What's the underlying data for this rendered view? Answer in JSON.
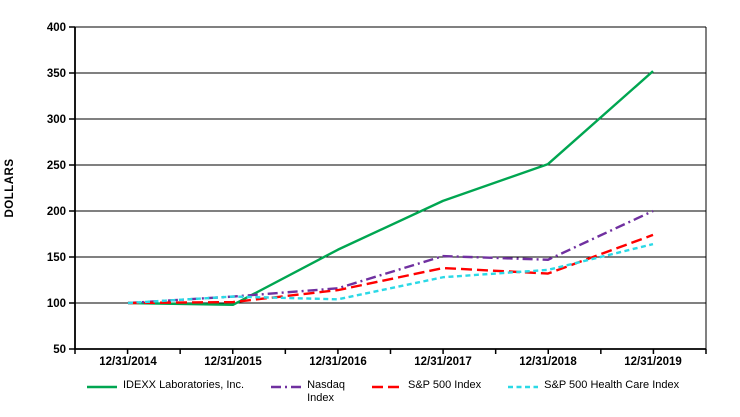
{
  "chart_data": {
    "type": "line",
    "title": "",
    "xlabel": "",
    "ylabel": "DOLLARS",
    "ylim": [
      50,
      400
    ],
    "y_ticks": [
      50,
      100,
      150,
      200,
      250,
      300,
      350,
      400
    ],
    "x_labels": [
      "12/31/2014",
      "12/31/2015",
      "12/31/2016",
      "12/31/2017",
      "12/31/2018",
      "12/31/2019"
    ],
    "grid": "horizontal",
    "legend_position": "bottom",
    "series": [
      {
        "name": "IDEXX Laboratories, Inc.",
        "legend_label": "IDEXX Laboratories, Inc.",
        "color": "#00A651",
        "dash": "solid",
        "values": [
          100,
          98,
          158,
          211,
          251,
          352
        ]
      },
      {
        "name": "Nasdaq Index",
        "legend_label": "Nasdaq\nIndex",
        "color": "#7030A0",
        "dash": "dash-dot",
        "values": [
          100,
          107,
          116,
          151,
          147,
          200
        ]
      },
      {
        "name": "S&P 500 Index",
        "legend_label": "S&P 500 Index",
        "color": "#FF0000",
        "dash": "dashed",
        "values": [
          100,
          101,
          114,
          138,
          132,
          174
        ]
      },
      {
        "name": "S&P 500 Health Care Index",
        "legend_label": "S&P 500 Health Care Index",
        "color": "#2BD9E6",
        "dash": "short-dash",
        "values": [
          100,
          107,
          104,
          128,
          136,
          164
        ]
      }
    ]
  }
}
